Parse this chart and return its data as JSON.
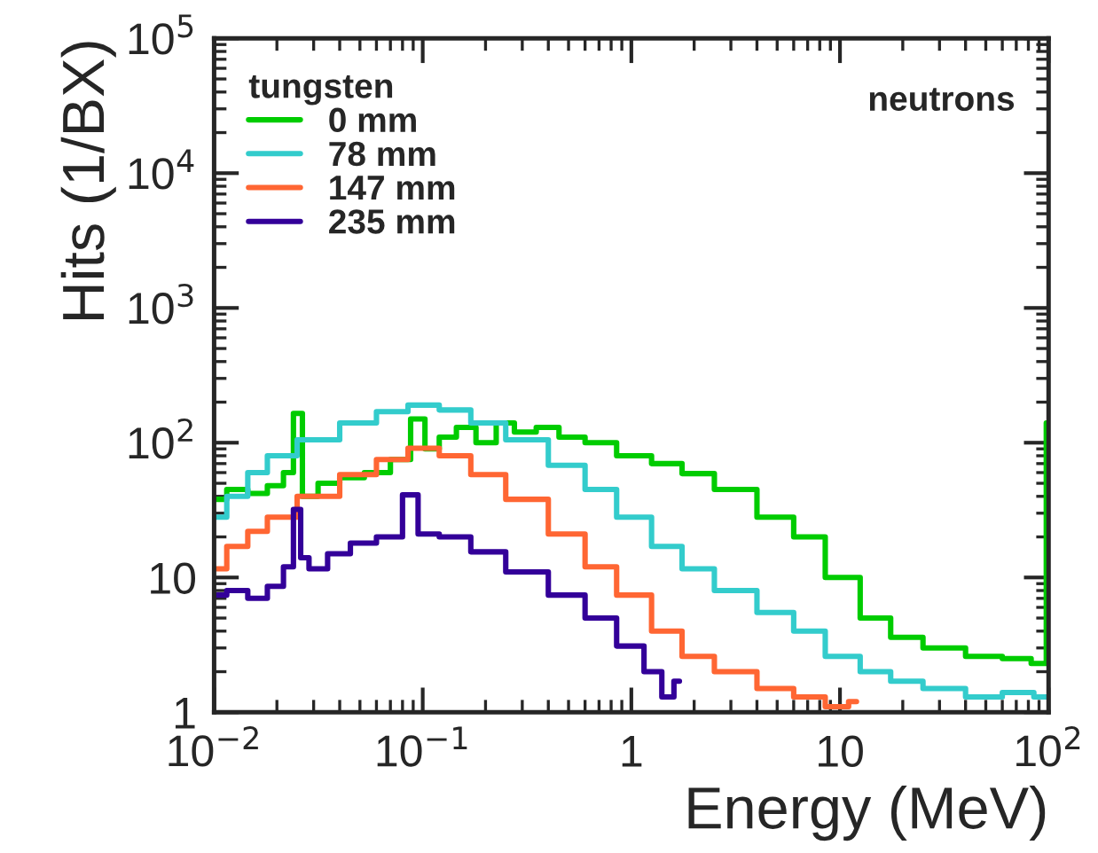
{
  "chart_data": {
    "type": "step",
    "xlabel": "Energy (MeV)",
    "ylabel": "Hits (1/BX)",
    "legend_title": "tungsten",
    "annotations": [
      "neutrons"
    ],
    "log": "xy",
    "grid": false,
    "legend": "top left",
    "line_style": "solid",
    "marker": "none",
    "xlim": [
      0.01,
      100
    ],
    "ylim": [
      1,
      100000
    ],
    "xticks": [
      {
        "value": 0.01,
        "label": "10$^{−2}$"
      },
      {
        "value": 0.1,
        "label": "10$^{−1}$"
      },
      1,
      10,
      {
        "value": 100,
        "label": "10$^{2}$"
      }
    ],
    "yticks": [
      1,
      10,
      {
        "value": 100,
        "label": "10$^{2}$"
      },
      {
        "value": 1000,
        "label": "10$^{3}$"
      },
      {
        "value": 10000,
        "label": "10$^{4}$"
      },
      {
        "value": 100000,
        "label": "10$^{5}$"
      }
    ],
    "series": [
      {
        "name": "0 mm",
        "color": "#00cc00",
        "x": [
          0.01,
          0.013,
          0.016,
          0.02,
          0.023,
          0.025,
          0.028,
          0.035,
          0.045,
          0.06,
          0.08,
          0.095,
          0.11,
          0.13,
          0.16,
          0.2,
          0.25,
          0.3,
          0.4,
          0.5,
          0.7,
          1,
          1.5,
          2,
          3,
          5,
          7,
          10,
          15,
          20,
          30,
          50,
          70,
          95,
          100
        ],
        "values": [
          38,
          45,
          42,
          48,
          60,
          165,
          40,
          50,
          55,
          60,
          75,
          150,
          90,
          110,
          130,
          100,
          140,
          120,
          130,
          110,
          100,
          80,
          70,
          59,
          45,
          28,
          20,
          10,
          5,
          3.6,
          3,
          2.6,
          2.5,
          2.3,
          140
        ]
      },
      {
        "name": "78 mm",
        "color": "#33cccc",
        "x": [
          0.01,
          0.013,
          0.016,
          0.02,
          0.03,
          0.05,
          0.07,
          0.1,
          0.14,
          0.2,
          0.3,
          0.5,
          0.7,
          1,
          1.5,
          2,
          3,
          5,
          7,
          10,
          15,
          20,
          30,
          50,
          70,
          100
        ],
        "values": [
          28,
          40,
          60,
          80,
          105,
          140,
          170,
          190,
          175,
          140,
          105,
          68,
          45,
          28,
          17,
          11.6,
          8,
          5.5,
          4,
          2.6,
          2,
          1.7,
          1.5,
          1.3,
          1.4,
          1.3
        ]
      },
      {
        "name": "147 mm",
        "color": "#ff6633",
        "x": [
          0.01,
          0.013,
          0.016,
          0.02,
          0.03,
          0.05,
          0.07,
          0.1,
          0.14,
          0.2,
          0.3,
          0.5,
          0.7,
          1,
          1.5,
          2,
          3,
          5,
          7,
          10,
          12
        ],
        "values": [
          11.6,
          17,
          22,
          28,
          40,
          58,
          75,
          91,
          80,
          58,
          38,
          21,
          12,
          7.4,
          4,
          2.6,
          2,
          1.5,
          1.3,
          1.1,
          1.2
        ]
      },
      {
        "name": "235 mm",
        "color": "#330099",
        "x": [
          0.01,
          0.013,
          0.016,
          0.02,
          0.023,
          0.025,
          0.027,
          0.03,
          0.04,
          0.05,
          0.07,
          0.09,
          0.1,
          0.14,
          0.2,
          0.3,
          0.5,
          0.7,
          1,
          1.3,
          1.5,
          1.7
        ],
        "values": [
          7.4,
          8,
          7,
          8.6,
          12,
          32,
          14,
          11.6,
          15,
          18,
          20,
          41,
          21,
          20,
          15.5,
          11,
          7.4,
          5,
          3.1,
          2,
          1.3,
          1.7
        ]
      }
    ]
  }
}
